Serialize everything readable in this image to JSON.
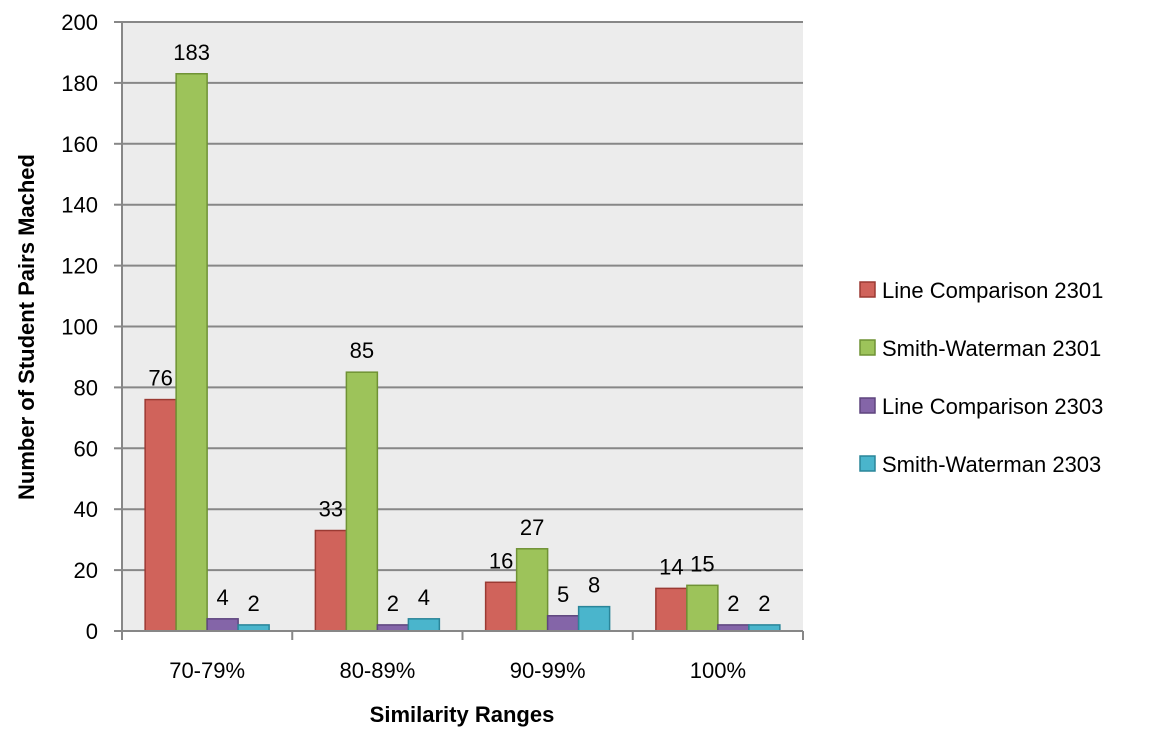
{
  "chart_data": {
    "type": "bar",
    "title": "",
    "xlabel": "Similarity Ranges",
    "ylabel": "Number of Student Pairs Mached",
    "categories": [
      "70-79%",
      "80-89%",
      "90-99%",
      "100%"
    ],
    "ylim": [
      0,
      200
    ],
    "yticks": [
      0,
      20,
      40,
      60,
      80,
      100,
      120,
      140,
      160,
      180,
      200
    ],
    "grid": true,
    "legend_position": "right",
    "series": [
      {
        "name": "Line Comparison 2301",
        "values": [
          76,
          33,
          16,
          14
        ],
        "color": "#d0635b",
        "stroke": "#9b3a33"
      },
      {
        "name": "Smith-Waterman 2301",
        "values": [
          183,
          85,
          27,
          15
        ],
        "color": "#9dc35a",
        "stroke": "#6f9234"
      },
      {
        "name": "Line Comparison 2303",
        "values": [
          4,
          2,
          5,
          2
        ],
        "color": "#8465a8",
        "stroke": "#5e457e"
      },
      {
        "name": "Smith-Waterman 2303",
        "values": [
          2,
          4,
          8,
          2
        ],
        "color": "#4ab5cc",
        "stroke": "#2a8599"
      }
    ],
    "plot_background": "#ececec",
    "grid_color": "#878787"
  }
}
